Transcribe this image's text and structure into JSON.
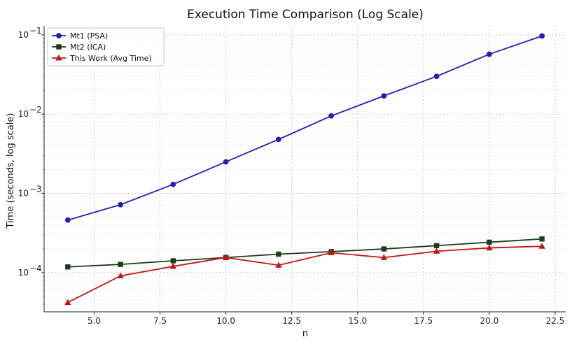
{
  "chart_data": {
    "type": "line",
    "title": "Execution Time Comparison (Log Scale)",
    "xlabel": "n",
    "ylabel": "Time (seconds, log scale)",
    "xlim": [
      3.1,
      22.9
    ],
    "ylim": [
      3.2e-05,
      0.13
    ],
    "yscale": "log",
    "grid": true,
    "legend_position": "top-left",
    "x_ticks": [
      5.0,
      7.5,
      10.0,
      12.5,
      15.0,
      17.5,
      20.0,
      22.5
    ],
    "x_tick_labels": [
      "5.0",
      "7.5",
      "10.0",
      "12.5",
      "15.0",
      "17.5",
      "20.0",
      "22.5"
    ],
    "y_ticks": [
      0.0001,
      0.001,
      0.01,
      0.1
    ],
    "y_tick_labels": [
      "10",
      "10",
      "10",
      "10"
    ],
    "y_tick_exponents": [
      "−4",
      "−3",
      "−2",
      "−1"
    ],
    "x": [
      4,
      6,
      8,
      10,
      12,
      14,
      16,
      18,
      20,
      22
    ],
    "series": [
      {
        "name": "Mt1 (PSA)",
        "color": "#1f1fbf",
        "marker": "circle",
        "values": [
          0.00046,
          0.00072,
          0.0013,
          0.0025,
          0.0048,
          0.0095,
          0.017,
          0.03,
          0.057,
          0.097
        ]
      },
      {
        "name": "Mt2 (ICA)",
        "color": "#1a3d1a",
        "marker": "square",
        "values": [
          0.000118,
          0.000127,
          0.000141,
          0.000155,
          0.000171,
          0.000184,
          0.000199,
          0.000219,
          0.000242,
          0.000266
        ]
      },
      {
        "name": "This Work (Avg Time)",
        "color": "#c41414",
        "marker": "triangle",
        "values": [
          4.2e-05,
          9.1e-05,
          0.00012,
          0.000155,
          0.000124,
          0.000178,
          0.000155,
          0.000186,
          0.000205,
          0.000215
        ]
      }
    ]
  }
}
